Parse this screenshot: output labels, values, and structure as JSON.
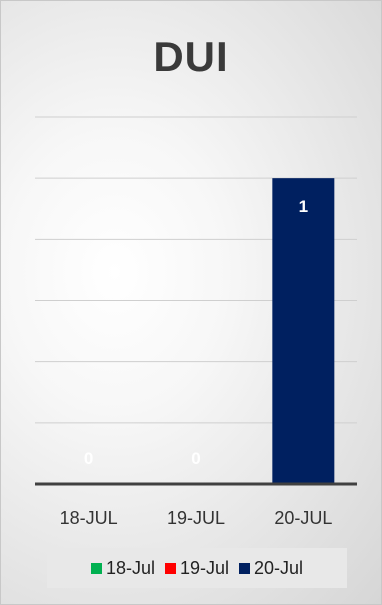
{
  "chart_data": {
    "type": "bar",
    "title": "DUI",
    "categories": [
      "18-JUL",
      "19-JUL",
      "20-JUL"
    ],
    "values": [
      0,
      0,
      1
    ],
    "colors": [
      "#00b050",
      "#ff0000",
      "#002060"
    ],
    "ylim": [
      0,
      1.2
    ],
    "grid": true,
    "data_labels": [
      "0",
      "0",
      "1"
    ],
    "legend": {
      "position": "bottom",
      "entries": [
        {
          "label": "18-Jul",
          "color": "#00b050"
        },
        {
          "label": "19-Jul",
          "color": "#ff0000"
        },
        {
          "label": "20-Jul",
          "color": "#002060"
        }
      ]
    }
  }
}
